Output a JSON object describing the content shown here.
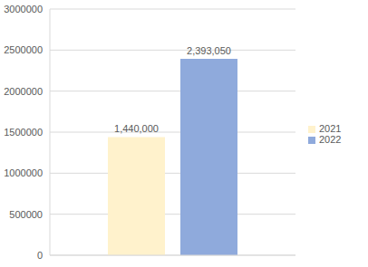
{
  "chart_data": {
    "type": "bar",
    "categories": [
      null
    ],
    "series": [
      {
        "name": "2021",
        "color": "#fff2cc",
        "values": [
          1440000
        ],
        "value_labels": [
          "1,440,000"
        ]
      },
      {
        "name": "2022",
        "color": "#8faadc",
        "values": [
          2393050
        ],
        "value_labels": [
          "2,393,050"
        ]
      }
    ],
    "ylim": [
      0,
      3000000
    ],
    "yticks": [
      0,
      500000,
      1000000,
      1500000,
      2000000,
      2500000,
      3000000
    ],
    "grid": true,
    "legend": "right",
    "data_labels": true
  }
}
